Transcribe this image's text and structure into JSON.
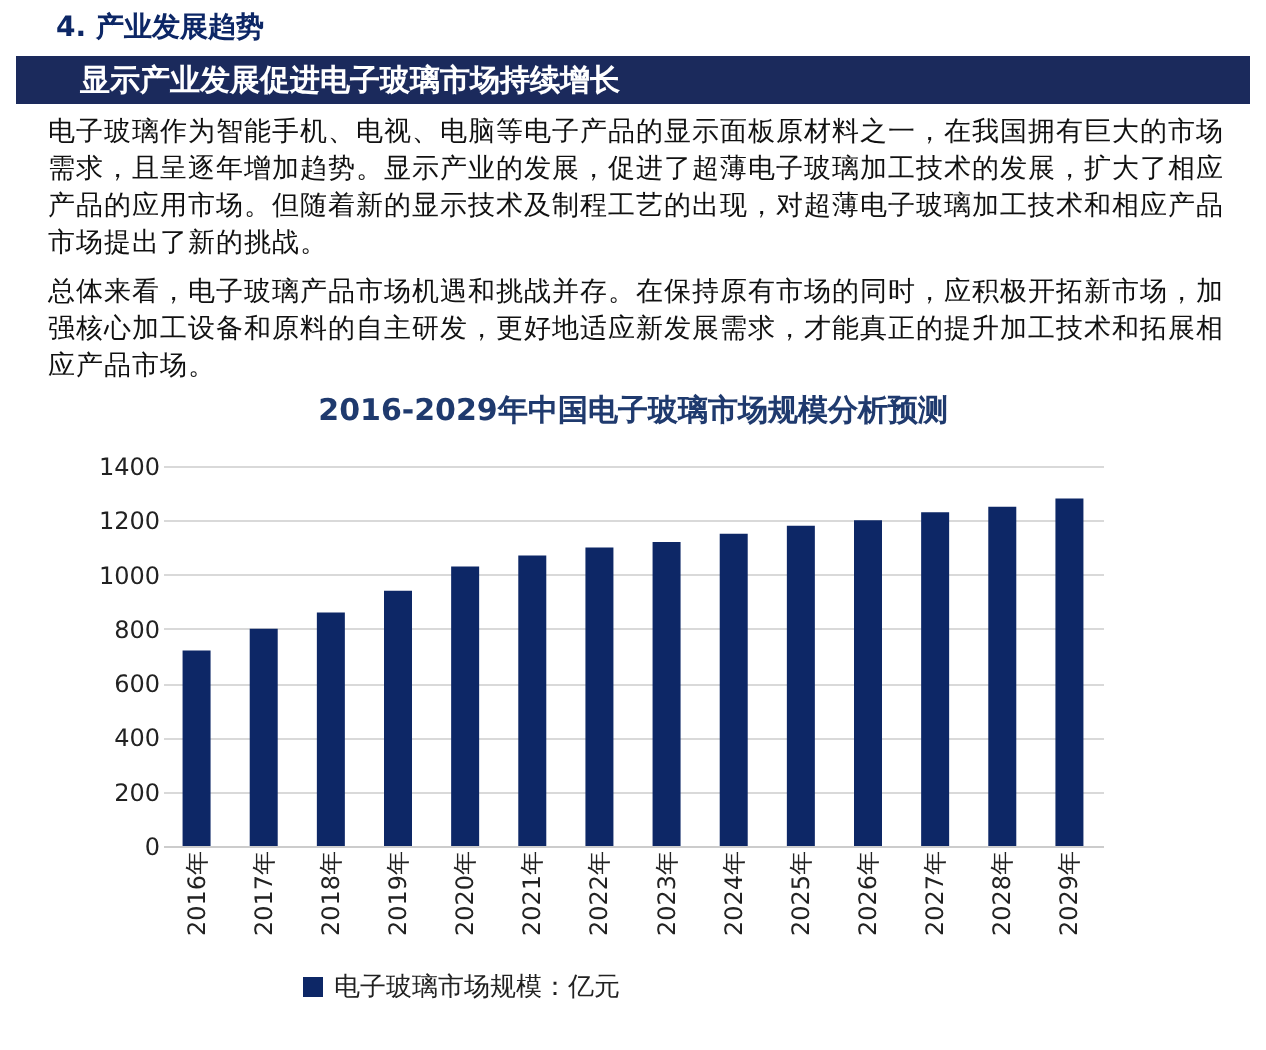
{
  "chart_data": {
    "type": "bar",
    "title": "2016-2029年中国电子玻璃市场规模分析预测",
    "annotations": [
      "4. 产业发展趋势",
      "显示产业发展促进电子玻璃市场持续增长",
      "电子玻璃作为智能手机、电视、电脑等电子产品的显示面板原材料之一，在我国拥有巨大的市场需求，且呈逐年增加趋势。显示产业的发展，促进了超薄电子玻璃加工技术的发展，扩大了相应产品的应用市场。但随着新的显示技术及制程工艺的出现，对超薄电子玻璃加工技术和相应产品市场提出了新的挑战。",
      "总体来看，电子玻璃产品市场机遇和挑战并存。在保持原有市场的同时，应积极开拓新市场，加强核心加工设备和原料的自主研发，更好地适应新发展需求，才能真正的提升加工技术和拓展相应产品市场。"
    ],
    "categories": [
      "2016年",
      "2017年",
      "2018年",
      "2019年",
      "2020年",
      "2021年",
      "2022年",
      "2023年",
      "2024年",
      "2025年",
      "2026年",
      "2027年",
      "2028年",
      "2029年"
    ],
    "series": [
      {
        "name": "电子玻璃市场规模：亿元",
        "color": "#0d2766",
        "values": [
          720,
          800,
          860,
          940,
          1030,
          1070,
          1100,
          1120,
          1150,
          1180,
          1200,
          1230,
          1250,
          1280
        ]
      }
    ],
    "ylim": [
      0,
      1400
    ],
    "yticks": [
      0,
      200,
      400,
      600,
      800,
      1000,
      1200,
      1400
    ],
    "grid": "y",
    "legend": "bottom"
  }
}
